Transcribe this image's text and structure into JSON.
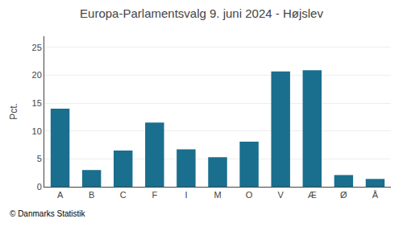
{
  "chart_data": {
    "type": "bar",
    "title": "Europa-Parlamentsvalg 9. juni 2024 - Højslev",
    "ylabel": "Pct.",
    "categories": [
      "A",
      "B",
      "C",
      "F",
      "I",
      "M",
      "O",
      "V",
      "Æ",
      "Ø",
      "Å"
    ],
    "values": [
      14.0,
      3.0,
      6.5,
      11.5,
      6.7,
      5.3,
      8.1,
      20.7,
      20.9,
      2.1,
      1.4
    ],
    "color": "#1a6e8e",
    "ylim": [
      0,
      27
    ],
    "yticks": [
      0,
      5,
      10,
      15,
      20,
      25
    ],
    "grid": true,
    "annotations": [
      "© Danmarks Statistik"
    ]
  }
}
